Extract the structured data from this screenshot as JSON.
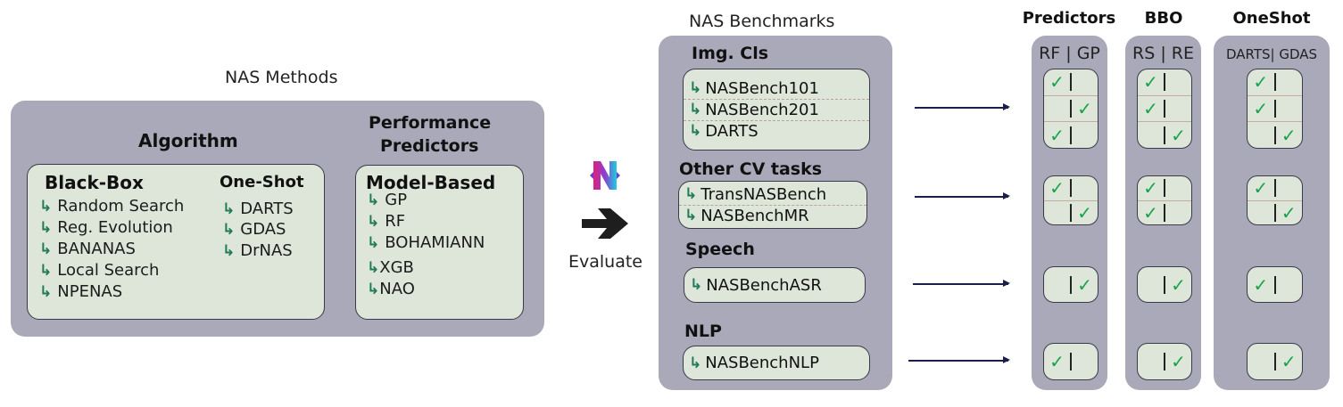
{
  "methods": {
    "title": "NAS Methods",
    "algorithm": {
      "title": "Algorithm",
      "black_box": {
        "title": "Black-Box",
        "items": [
          "Random Search",
          "Reg. Evolution",
          "BANANAS",
          "Local Search",
          "NPENAS"
        ]
      },
      "one_shot": {
        "title": "One-Shot",
        "items": [
          "DARTS",
          "GDAS",
          "DrNAS"
        ]
      }
    },
    "predictors": {
      "title_line1": "Performance",
      "title_line2": "Predictors",
      "model_based": {
        "title": "Model-Based",
        "items": [
          "GP",
          "RF",
          "BOHAMIANN",
          "XGB",
          "NAO"
        ]
      }
    }
  },
  "evaluate": {
    "label": "Evaluate",
    "logo": "naslib-logo",
    "arrow": "right-arrow-icon"
  },
  "benchmarks": {
    "title": "NAS Benchmarks",
    "groups": [
      {
        "title": "Img. Cls",
        "items": [
          "NASBench101",
          "NASBench201",
          "DARTS"
        ]
      },
      {
        "title": "Other CV tasks",
        "items": [
          "TransNASBench",
          "NASBenchMR"
        ]
      },
      {
        "title": "Speech",
        "items": [
          "NASBenchASR"
        ]
      },
      {
        "title": "NLP",
        "items": [
          "NASBenchNLP"
        ]
      }
    ]
  },
  "results": {
    "check_color": "#17a34a",
    "columns": [
      {
        "title": "Predictors",
        "subtitle": "RF | GP",
        "checks": [
          [
            "left",
            "right",
            "left"
          ],
          [
            "left",
            "right"
          ],
          [
            "right"
          ],
          [
            "left"
          ]
        ]
      },
      {
        "title": "BBO",
        "subtitle": "RS | RE",
        "checks": [
          [
            "left",
            "left",
            "right"
          ],
          [
            "left",
            "left"
          ],
          [
            "right"
          ],
          [
            "right"
          ]
        ]
      },
      {
        "title": "OneShot",
        "subtitle": "DARTS| GDAS",
        "checks": [
          [
            "left",
            "left",
            "right"
          ],
          [
            "left",
            "right"
          ],
          [
            "left"
          ],
          [
            "right"
          ]
        ]
      }
    ]
  }
}
